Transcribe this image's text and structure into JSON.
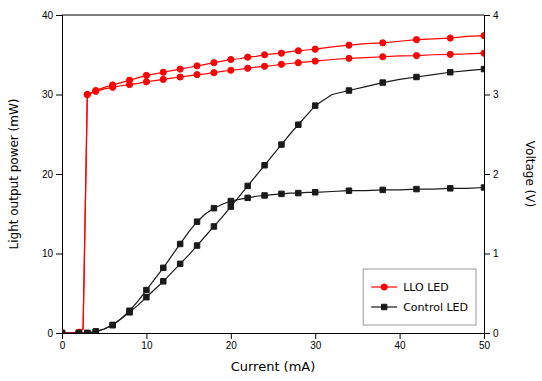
{
  "chart_data": {
    "type": "line",
    "xlabel": "Current (mA)",
    "ylabel": "Light output power (mW)",
    "y2label": "Voltage (V)",
    "x": [
      0,
      1,
      2,
      2.5,
      3,
      3.5,
      4,
      5,
      6,
      7,
      8,
      9,
      10,
      11,
      12,
      13,
      14,
      15,
      16,
      17,
      18,
      19,
      20,
      21,
      22,
      23,
      24,
      25,
      26,
      27,
      28,
      29,
      30,
      32,
      34,
      36,
      38,
      40,
      42,
      44,
      46,
      48,
      50
    ],
    "series": [
      {
        "name": "LLO LED",
        "color": "#ff0000",
        "marker": "circle",
        "values": [
          0,
          0,
          0.05,
          0.5,
          30.0,
          30.2,
          30.4,
          30.7,
          30.9,
          31.1,
          31.25,
          31.4,
          31.6,
          31.75,
          31.9,
          32.05,
          32.2,
          32.35,
          32.5,
          32.6,
          32.75,
          32.9,
          33.05,
          33.15,
          33.3,
          33.45,
          33.55,
          33.65,
          33.8,
          33.9,
          34.0,
          34.1,
          34.2,
          34.4,
          34.55,
          34.65,
          34.75,
          34.85,
          34.9,
          35.0,
          35.05,
          35.1,
          35.2
        ]
      },
      {
        "name": "Control LED",
        "color": "#1a1a1a",
        "marker": "square",
        "values": [
          0,
          0,
          0,
          0,
          0,
          0.05,
          0.15,
          0.5,
          1.0,
          1.8,
          2.6,
          3.5,
          4.5,
          5.5,
          6.5,
          7.6,
          8.7,
          9.8,
          11.0,
          12.2,
          13.4,
          14.6,
          15.9,
          17.2,
          18.5,
          19.8,
          21.1,
          22.4,
          23.7,
          25.0,
          26.2,
          27.4,
          28.6,
          30.0,
          30.5,
          31.0,
          31.5,
          31.9,
          32.2,
          32.5,
          32.8,
          33.0,
          33.2
        ]
      },
      {
        "axis": "y2",
        "color": "#ff0000",
        "marker": "circle",
        "values": [
          0,
          0,
          0.01,
          0.05,
          3.0,
          3.02,
          3.05,
          3.09,
          3.12,
          3.15,
          3.18,
          3.21,
          3.24,
          3.26,
          3.28,
          3.3,
          3.32,
          3.34,
          3.36,
          3.38,
          3.4,
          3.42,
          3.44,
          3.45,
          3.47,
          3.48,
          3.5,
          3.51,
          3.52,
          3.54,
          3.55,
          3.56,
          3.57,
          3.6,
          3.62,
          3.64,
          3.65,
          3.67,
          3.69,
          3.7,
          3.71,
          3.73,
          3.74
        ]
      },
      {
        "axis": "y2",
        "color": "#1a1a1a",
        "marker": "square",
        "values": [
          0,
          0,
          0,
          0,
          0,
          0.01,
          0.02,
          0.05,
          0.1,
          0.18,
          0.28,
          0.4,
          0.54,
          0.68,
          0.82,
          0.97,
          1.12,
          1.27,
          1.4,
          1.5,
          1.57,
          1.62,
          1.66,
          1.68,
          1.7,
          1.72,
          1.73,
          1.74,
          1.75,
          1.76,
          1.76,
          1.77,
          1.77,
          1.78,
          1.79,
          1.79,
          1.8,
          1.8,
          1.81,
          1.81,
          1.82,
          1.82,
          1.83
        ]
      }
    ],
    "xlim": [
      0,
      50
    ],
    "xticks": [
      0,
      10,
      20,
      30,
      40,
      50
    ],
    "ylim": [
      0,
      40
    ],
    "yticks": [
      0,
      10,
      20,
      30,
      40
    ],
    "y2lim": [
      0,
      4
    ],
    "y2ticks": [
      0,
      1,
      2,
      3,
      4
    ],
    "grid": false,
    "legend": "lower right"
  }
}
